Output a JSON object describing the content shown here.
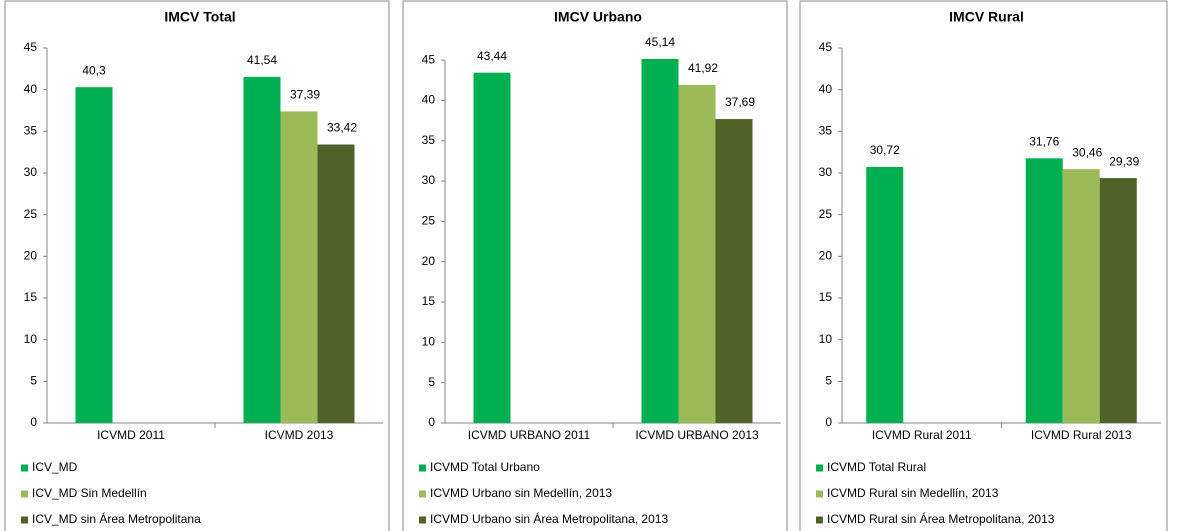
{
  "chart_data": [
    {
      "type": "bar",
      "title": "IMCV Total",
      "categories": [
        "ICVMD 2011",
        "ICVMD 2013"
      ],
      "series": [
        {
          "name": "ICV_MD",
          "color": "#00b050",
          "values": [
            40.3,
            41.54
          ],
          "value_labels": [
            "40,3",
            "41,54"
          ]
        },
        {
          "name": "ICV_MD Sin Medellín",
          "color": "#9bbb59",
          "values": [
            null,
            37.39
          ],
          "value_labels": [
            null,
            "37,39"
          ]
        },
        {
          "name": "ICV_MD sin Área Metropolitana",
          "color": "#4f6228",
          "values": [
            null,
            33.42
          ],
          "value_labels": [
            null,
            "33,42"
          ]
        }
      ],
      "ylim": [
        0,
        45
      ],
      "yticks": [
        0,
        5,
        10,
        15,
        20,
        25,
        30,
        35,
        40,
        45
      ]
    },
    {
      "type": "bar",
      "title": "IMCV Urbano",
      "categories": [
        "ICVMD URBANO 2011",
        "ICVMD URBANO 2013"
      ],
      "series": [
        {
          "name": "ICVMD Total Urbano",
          "color": "#00b050",
          "values": [
            43.44,
            45.14
          ],
          "value_labels": [
            "43,44",
            "45,14"
          ]
        },
        {
          "name": "ICVMD Urbano sin Medellín, 2013",
          "color": "#9bbb59",
          "values": [
            null,
            41.92
          ],
          "value_labels": [
            null,
            "41,92"
          ]
        },
        {
          "name": "ICVMD Urbano sin Área Metropolitana, 2013",
          "color": "#4f6228",
          "values": [
            null,
            37.69
          ],
          "value_labels": [
            null,
            "37,69"
          ]
        }
      ],
      "ylim": [
        0,
        46.5
      ],
      "yticks": [
        0,
        5,
        10,
        15,
        20,
        25,
        30,
        35,
        40,
        45
      ]
    },
    {
      "type": "bar",
      "title": "IMCV Rural",
      "categories": [
        "ICVMD Rural 2011",
        "ICVMD Rural 2013"
      ],
      "series": [
        {
          "name": "ICVMD Total Rural",
          "color": "#00b050",
          "values": [
            30.72,
            31.76
          ],
          "value_labels": [
            "30,72",
            "31,76"
          ]
        },
        {
          "name": "ICVMD Rural sin Medellín, 2013",
          "color": "#9bbb59",
          "values": [
            null,
            30.46
          ],
          "value_labels": [
            null,
            "30,46"
          ]
        },
        {
          "name": "ICVMD Rural sin Área Metropolitana, 2013",
          "color": "#4f6228",
          "values": [
            null,
            29.39
          ],
          "value_labels": [
            null,
            "29,39"
          ]
        }
      ],
      "ylim": [
        0,
        45
      ],
      "yticks": [
        0,
        5,
        10,
        15,
        20,
        25,
        30,
        35,
        40,
        45
      ]
    }
  ]
}
